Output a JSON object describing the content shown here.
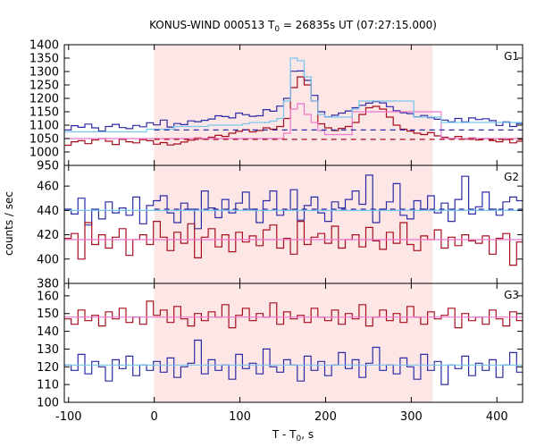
{
  "chart_data": {
    "type": "line",
    "title_parts": [
      "KONUS-WIND 000513 T",
      "0",
      " = 26835s UT (07:27:15.000)"
    ],
    "xlabel_parts": [
      "T - T",
      "0",
      ", s"
    ],
    "ylabel": "counts / sec",
    "xlim": [
      -105,
      430
    ],
    "xticks": [
      -100,
      0,
      100,
      200,
      300,
      400
    ],
    "shaded_interval": [
      0,
      325
    ],
    "grid": false,
    "colors": {
      "blue": "#2b2ba6",
      "red": "#a60d1d",
      "cyan": "#77c6ee",
      "pink": "#ee77cc",
      "shade": "#fde6e6"
    },
    "panels": [
      {
        "label": "G1",
        "ylim": [
          950,
          1400
        ],
        "yticks": [
          950,
          1000,
          1050,
          1100,
          1150,
          1200,
          1250,
          1300,
          1350,
          1400
        ],
        "bin_width": 8,
        "x_start": -105,
        "series": [
          {
            "color": "blue",
            "values": [
              1082,
              1098,
              1092,
              1104,
              1090,
              1078,
              1095,
              1103,
              1091,
              1087,
              1099,
              1094,
              1109,
              1101,
              1119,
              1093,
              1106,
              1102,
              1116,
              1113,
              1118,
              1123,
              1135,
              1132,
              1127,
              1145,
              1139,
              1133,
              1135,
              1158,
              1152,
              1171,
              1200,
              1301,
              1302,
              1267,
              1211,
              1150,
              1131,
              1137,
              1145,
              1153,
              1165,
              1174,
              1182,
              1188,
              1183,
              1169,
              1154,
              1146,
              1143,
              1131,
              1136,
              1128,
              1122,
              1119,
              1112,
              1125,
              1112,
              1127,
              1121,
              1124,
              1117,
              1099,
              1112,
              1095,
              1106,
              1098,
              1104,
              1116,
              1081
            ]
          },
          {
            "color": "red",
            "values": [
              1025,
              1038,
              1042,
              1031,
              1045,
              1050,
              1040,
              1028,
              1047,
              1038,
              1034,
              1046,
              1042,
              1029,
              1035,
              1026,
              1030,
              1037,
              1044,
              1052,
              1048,
              1055,
              1062,
              1058,
              1070,
              1077,
              1083,
              1075,
              1080,
              1090,
              1085,
              1095,
              1125,
              1240,
              1280,
              1250,
              1190,
              1105,
              1090,
              1080,
              1088,
              1095,
              1110,
              1140,
              1165,
              1170,
              1160,
              1130,
              1100,
              1085,
              1078,
              1070,
              1065,
              1072,
              1060,
              1055,
              1050,
              1058,
              1048,
              1052,
              1045,
              1050,
              1043,
              1038,
              1046,
              1034,
              1040,
              1031,
              1037,
              1035,
              1018
            ]
          },
          {
            "color": "pink",
            "values": [
              1050,
              1050,
              1050,
              1050,
              1050,
              1050,
              1050,
              1050,
              1050,
              1050,
              1050,
              1050,
              1050,
              1050,
              1050,
              1050,
              1050,
              1050,
              1050,
              1050,
              1050,
              1050,
              1050,
              1050,
              1050,
              1050,
              1050,
              1050,
              1050,
              1050,
              1050,
              1050,
              1070,
              1160,
              1180,
              1140,
              1110,
              1080,
              1065,
              1065,
              1065,
              1065,
              1150,
              1150,
              1150,
              1150,
              1150,
              1150,
              1150,
              1150,
              1150,
              1150,
              1150,
              1150,
              1150,
              1050,
              1050,
              1050,
              1050,
              1050,
              1050,
              1050,
              1050,
              1050,
              1050,
              1050,
              1050,
              1050,
              1050,
              1050,
              1050
            ]
          },
          {
            "color": "cyan",
            "values": [
              1075,
              1075,
              1075,
              1075,
              1075,
              1075,
              1075,
              1075,
              1075,
              1075,
              1075,
              1075,
              1085,
              1085,
              1085,
              1085,
              1095,
              1095,
              1095,
              1095,
              1095,
              1100,
              1100,
              1100,
              1100,
              1100,
              1105,
              1110,
              1110,
              1110,
              1115,
              1125,
              1190,
              1350,
              1340,
              1280,
              1190,
              1140,
              1130,
              1130,
              1130,
              1130,
              1160,
              1190,
              1190,
              1190,
              1190,
              1190,
              1190,
              1190,
              1190,
              1130,
              1130,
              1130,
              1130,
              1110,
              1110,
              1110,
              1110,
              1110,
              1110,
              1110,
              1110,
              1110,
              1110,
              1110,
              1110,
              1110,
              1110,
              1110,
              1110
            ]
          }
        ],
        "hlines": [
          {
            "color": "blue",
            "y": 1082,
            "x": [
              0,
              430
            ]
          },
          {
            "color": "red",
            "y": 1047,
            "x": [
              0,
              430
            ]
          }
        ]
      },
      {
        "label": "G2",
        "ylim": [
          380,
          477
        ],
        "yticks": [
          380,
          400,
          420,
          440,
          460
        ],
        "bin_width": 8,
        "x_start": -105,
        "series": [
          {
            "color": "blue",
            "values": [
              441,
              437,
              450,
              428,
              441,
              433,
              447,
              438,
              442,
              436,
              451,
              429,
              444,
              448,
              452,
              438,
              430,
              446,
              441,
              425,
              456,
              442,
              434,
              449,
              438,
              446,
              455,
              441,
              430,
              448,
              456,
              436,
              440,
              457,
              432,
              444,
              451,
              438,
              431,
              447,
              442,
              449,
              456,
              445,
              469,
              430,
              441,
              447,
              462,
              436,
              433,
              448,
              441,
              452,
              438,
              446,
              431,
              449,
              468,
              437,
              443,
              455,
              441,
              436,
              447,
              451,
              448,
              441,
              435,
              452,
              444,
              440,
              436
            ]
          },
          {
            "color": "red",
            "values": [
              417,
              421,
              400,
              430,
              412,
              420,
              409,
              418,
              425,
              403,
              416,
              420,
              412,
              431,
              418,
              407,
              422,
              413,
              429,
              401,
              418,
              425,
              410,
              420,
              406,
              422,
              414,
              419,
              411,
              424,
              428,
              409,
              417,
              404,
              431,
              412,
              418,
              421,
              413,
              427,
              409,
              416,
              420,
              410,
              426,
              415,
              408,
              422,
              413,
              430,
              412,
              407,
              419,
              416,
              424,
              409,
              418,
              411,
              420,
              415,
              413,
              419,
              404,
              417,
              421,
              395,
              414,
              409,
              426,
              413,
              418,
              416,
              420
            ]
          },
          {
            "color": "cyan",
            "values": [
              440,
              440,
              440,
              440,
              440,
              440,
              440,
              440,
              440,
              440,
              440,
              440,
              440,
              440,
              440,
              440,
              440,
              440,
              440,
              440,
              440,
              440,
              440,
              440,
              440,
              440,
              440,
              440,
              440,
              440,
              440,
              440,
              440,
              440,
              440,
              440,
              440,
              440,
              440,
              440,
              440,
              440,
              440,
              440,
              440,
              440,
              440,
              440,
              440,
              440,
              440,
              440,
              440,
              440,
              440,
              440,
              440,
              440,
              440,
              440,
              440,
              440,
              440,
              440,
              440,
              440,
              440,
              440,
              440,
              440,
              440,
              440,
              440
            ]
          },
          {
            "color": "pink",
            "values": [
              416,
              416,
              416,
              416,
              416,
              416,
              416,
              416,
              416,
              416,
              416,
              416,
              416,
              416,
              416,
              416,
              416,
              416,
              416,
              416,
              416,
              416,
              416,
              416,
              416,
              416,
              416,
              416,
              416,
              416,
              416,
              416,
              416,
              416,
              416,
              416,
              416,
              416,
              416,
              416,
              416,
              416,
              416,
              416,
              416,
              416,
              416,
              416,
              416,
              416,
              416,
              416,
              416,
              416,
              416,
              416,
              416,
              416,
              416,
              416,
              416,
              416,
              416,
              416,
              416,
              416,
              416,
              416,
              416,
              416,
              416,
              416,
              416
            ]
          }
        ],
        "hlines": [
          {
            "color": "blue",
            "y": 441,
            "x": [
              0,
              430
            ]
          }
        ]
      },
      {
        "label": "G3",
        "ylim": [
          100,
          167
        ],
        "yticks": [
          100,
          110,
          120,
          130,
          140,
          150,
          160
        ],
        "bin_width": 8,
        "x_start": -105,
        "series": [
          {
            "color": "red",
            "values": [
              147,
              144,
              152,
              146,
              149,
              143,
              151,
              147,
              153,
              145,
              148,
              144,
              157,
              149,
              152,
              145,
              154,
              147,
              143,
              150,
              146,
              151,
              148,
              155,
              142,
              149,
              153,
              146,
              150,
              148,
              156,
              144,
              151,
              147,
              149,
              145,
              153,
              148,
              146,
              152,
              144,
              150,
              147,
              155,
              143,
              148,
              152,
              146,
              150,
              145,
              154,
              148,
              144,
              151,
              147,
              149,
              153,
              142,
              150,
              146,
              148,
              144,
              152,
              147,
              143,
              151,
              146,
              149,
              145,
              150,
              147,
              150,
              148
            ]
          },
          {
            "color": "blue",
            "values": [
              121,
              118,
              127,
              116,
              123,
              120,
              112,
              124,
              119,
              126,
              115,
              121,
              118,
              123,
              117,
              125,
              114,
              120,
              122,
              135,
              116,
              124,
              118,
              121,
              113,
              127,
              119,
              122,
              116,
              130,
              120,
              117,
              124,
              121,
              112,
              126,
              118,
              123,
              115,
              121,
              128,
              119,
              124,
              114,
              122,
              131,
              118,
              121,
              116,
              125,
              120,
              113,
              127,
              118,
              123,
              110,
              121,
              119,
              126,
              115,
              122,
              118,
              124,
              114,
              121,
              128,
              117,
              122,
              119,
              113,
              123,
              120,
              122
            ]
          },
          {
            "color": "pink",
            "values": [
              148,
              148,
              148,
              148,
              148,
              148,
              148,
              148,
              148,
              148,
              148,
              148,
              148,
              148,
              148,
              148,
              148,
              148,
              148,
              148,
              148,
              148,
              148,
              148,
              148,
              148,
              148,
              148,
              148,
              148,
              148,
              148,
              148,
              148,
              148,
              148,
              148,
              148,
              148,
              148,
              148,
              148,
              148,
              148,
              148,
              148,
              148,
              148,
              148,
              148,
              148,
              148,
              148,
              148,
              148,
              148,
              148,
              148,
              148,
              148,
              148,
              148,
              148,
              148,
              148,
              148,
              148,
              148,
              148,
              148,
              148,
              148,
              148
            ]
          },
          {
            "color": "cyan",
            "values": [
              121,
              121,
              121,
              121,
              121,
              121,
              121,
              121,
              121,
              121,
              121,
              121,
              121,
              121,
              121,
              121,
              121,
              121,
              121,
              121,
              121,
              121,
              121,
              121,
              121,
              121,
              121,
              121,
              121,
              121,
              121,
              121,
              121,
              121,
              121,
              121,
              121,
              121,
              121,
              121,
              121,
              121,
              121,
              121,
              121,
              121,
              121,
              121,
              121,
              121,
              121,
              121,
              121,
              121,
              121,
              121,
              121,
              121,
              121,
              121,
              121,
              121,
              121,
              121,
              121,
              121,
              121,
              121,
              121,
              121,
              121,
              121,
              121
            ]
          }
        ],
        "hlines": []
      }
    ]
  }
}
